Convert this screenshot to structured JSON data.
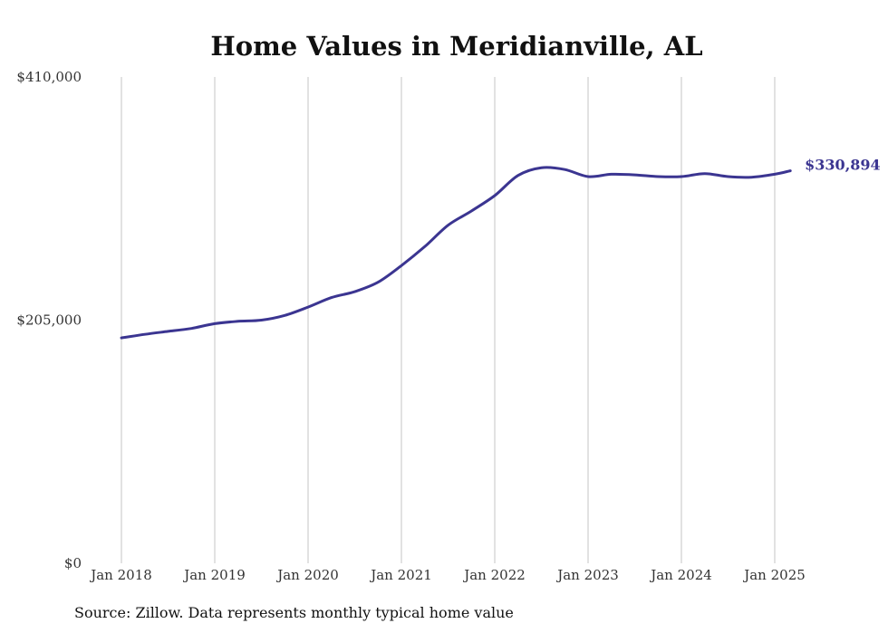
{
  "chart_data": {
    "type": "line",
    "title": "Home Values in Meridianville, AL",
    "xlabel": "",
    "ylabel": "",
    "ylim": [
      0,
      410000
    ],
    "y_ticks": [
      {
        "value": 0,
        "label": "$0"
      },
      {
        "value": 205000,
        "label": "$205,000"
      },
      {
        "value": 410000,
        "label": "$410,000"
      }
    ],
    "x_ticks": [
      {
        "value": "2018-01",
        "label": "Jan 2018"
      },
      {
        "value": "2019-01",
        "label": "Jan 2019"
      },
      {
        "value": "2020-01",
        "label": "Jan 2020"
      },
      {
        "value": "2021-01",
        "label": "Jan 2021"
      },
      {
        "value": "2022-01",
        "label": "Jan 2022"
      },
      {
        "value": "2023-01",
        "label": "Jan 2023"
      },
      {
        "value": "2024-01",
        "label": "Jan 2024"
      },
      {
        "value": "2025-01",
        "label": "Jan 2025"
      }
    ],
    "x_range": [
      "2018-01",
      "2025-03"
    ],
    "grid": "vertical",
    "line_color": "#3b3591",
    "series": [
      {
        "points": [
          {
            "x": "2018-01",
            "y": 190000
          },
          {
            "x": "2018-04",
            "y": 193000
          },
          {
            "x": "2018-07",
            "y": 195500
          },
          {
            "x": "2018-10",
            "y": 198000
          },
          {
            "x": "2019-01",
            "y": 202000
          },
          {
            "x": "2019-04",
            "y": 204000
          },
          {
            "x": "2019-07",
            "y": 205000
          },
          {
            "x": "2019-10",
            "y": 209000
          },
          {
            "x": "2020-01",
            "y": 216000
          },
          {
            "x": "2020-04",
            "y": 224000
          },
          {
            "x": "2020-07",
            "y": 229000
          },
          {
            "x": "2020-10",
            "y": 237000
          },
          {
            "x": "2021-01",
            "y": 251000
          },
          {
            "x": "2021-04",
            "y": 267000
          },
          {
            "x": "2021-07",
            "y": 285000
          },
          {
            "x": "2021-10",
            "y": 297000
          },
          {
            "x": "2022-01",
            "y": 310000
          },
          {
            "x": "2022-04",
            "y": 327000
          },
          {
            "x": "2022-07",
            "y": 333500
          },
          {
            "x": "2022-10",
            "y": 332000
          },
          {
            "x": "2023-01",
            "y": 326000
          },
          {
            "x": "2023-04",
            "y": 328000
          },
          {
            "x": "2023-07",
            "y": 327500
          },
          {
            "x": "2023-10",
            "y": 326000
          },
          {
            "x": "2024-01",
            "y": 326000
          },
          {
            "x": "2024-04",
            "y": 328500
          },
          {
            "x": "2024-07",
            "y": 326000
          },
          {
            "x": "2024-10",
            "y": 325500
          },
          {
            "x": "2025-01",
            "y": 328000
          },
          {
            "x": "2025-03",
            "y": 330894
          }
        ]
      }
    ],
    "end_label": "$330,894",
    "source": "Source: Zillow. Data represents monthly typical home value"
  }
}
